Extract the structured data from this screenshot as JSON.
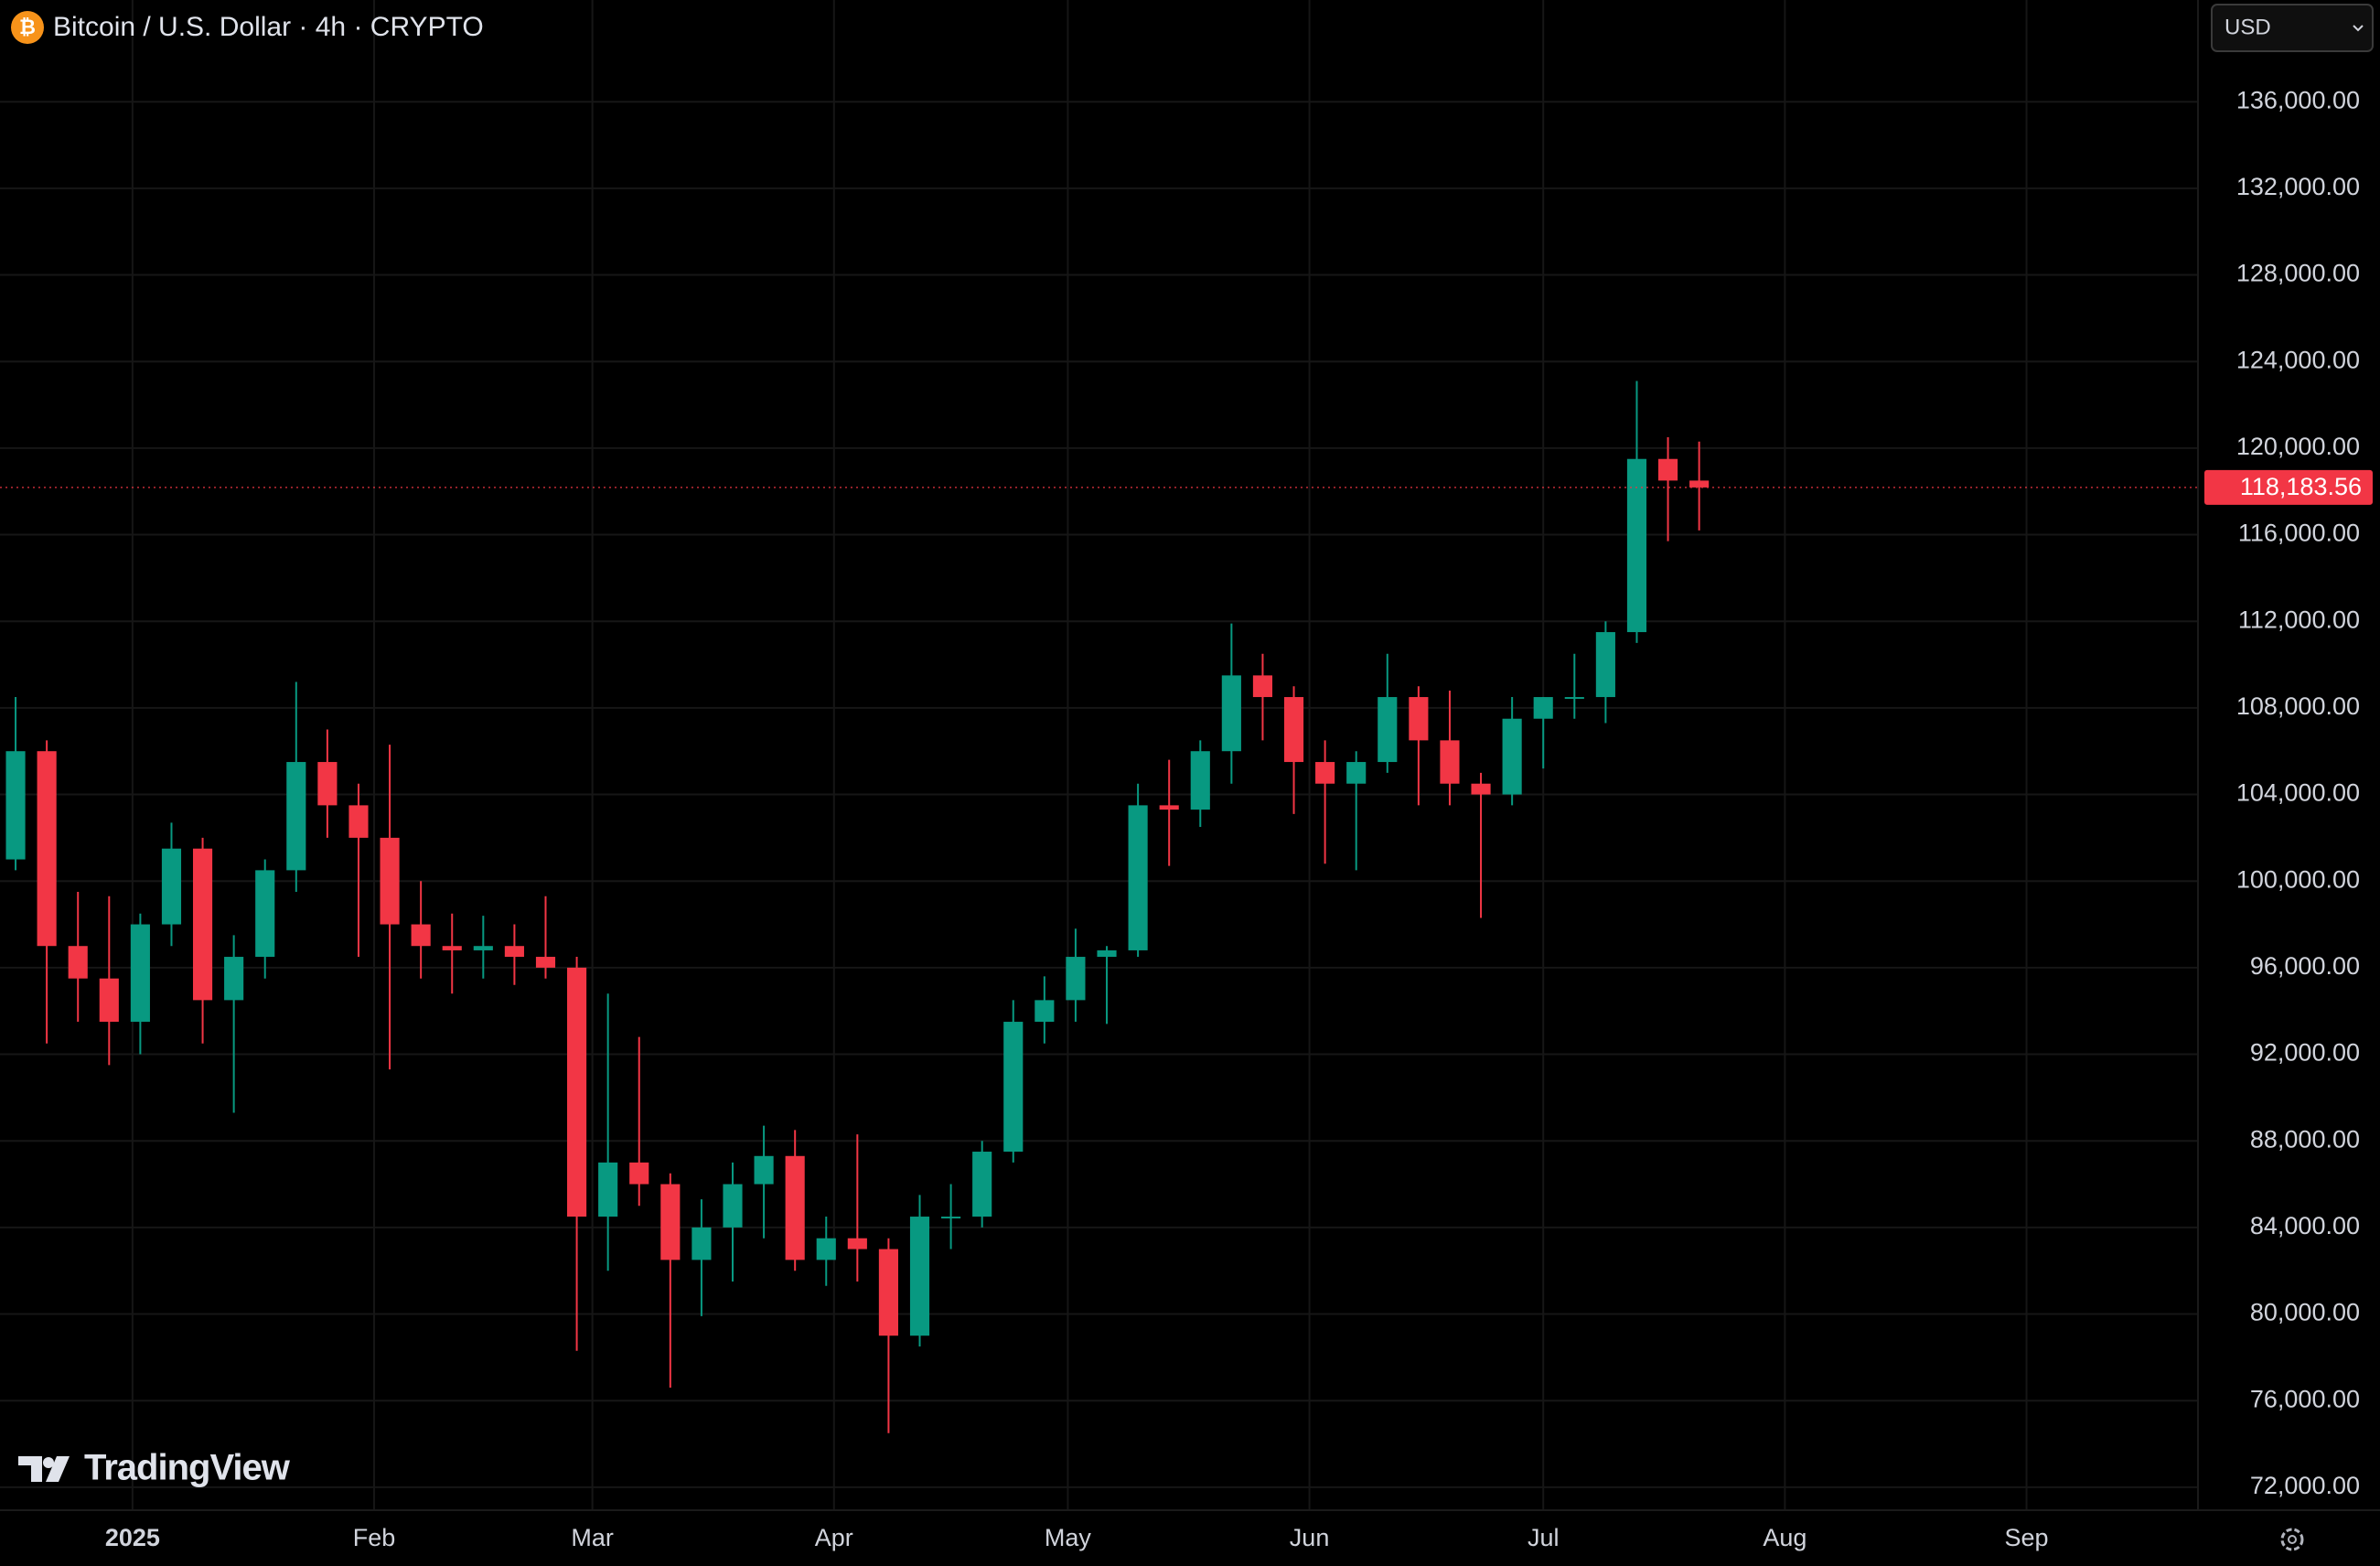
{
  "header": {
    "title": "Bitcoin / U.S. Dollar · 4h · CRYPTO",
    "currency": "USD",
    "brand": "TradingView"
  },
  "chart_data": {
    "type": "candlestick",
    "x": [
      "2024-12-15",
      "2024-12-19",
      "2024-12-23",
      "2024-12-27",
      "2024-12-31",
      "2025-01-04",
      "2025-01-08",
      "2025-01-12",
      "2025-01-16",
      "2025-01-20",
      "2025-01-24",
      "2025-01-28",
      "2025-02-01",
      "2025-02-05",
      "2025-02-09",
      "2025-02-13",
      "2025-02-17",
      "2025-02-21",
      "2025-02-25",
      "2025-03-01",
      "2025-03-05",
      "2025-03-09",
      "2025-03-13",
      "2025-03-17",
      "2025-03-21",
      "2025-03-25",
      "2025-03-29",
      "2025-04-02",
      "2025-04-06",
      "2025-04-10",
      "2025-04-14",
      "2025-04-18",
      "2025-04-22",
      "2025-04-26",
      "2025-04-30",
      "2025-05-04",
      "2025-05-08",
      "2025-05-12",
      "2025-05-16",
      "2025-05-20",
      "2025-05-24",
      "2025-05-28",
      "2025-06-01",
      "2025-06-05",
      "2025-06-09",
      "2025-06-13",
      "2025-06-17",
      "2025-06-21",
      "2025-06-25",
      "2025-06-29",
      "2025-07-03",
      "2025-07-07",
      "2025-07-11",
      "2025-07-15",
      "2025-07-19"
    ],
    "open": [
      101000,
      106000,
      97000,
      95500,
      93500,
      98000,
      101500,
      94500,
      96500,
      100500,
      105500,
      103500,
      102000,
      98000,
      97000,
      96800,
      97000,
      96500,
      96000,
      84500,
      87000,
      86000,
      82500,
      84000,
      86000,
      87300,
      82500,
      83500,
      83000,
      79000,
      84500,
      84500,
      87500,
      93500,
      94500,
      96500,
      96800,
      103500,
      103300,
      106000,
      109500,
      108500,
      105500,
      104500,
      105500,
      108500,
      106500,
      104500,
      104000,
      107500,
      108500,
      108500,
      111500,
      119500,
      118500
    ],
    "high": [
      108500,
      106500,
      99500,
      99300,
      98500,
      102700,
      102000,
      97500,
      101000,
      109200,
      107000,
      104500,
      106300,
      100000,
      98500,
      98400,
      98000,
      99300,
      96500,
      94800,
      92800,
      86500,
      85300,
      87000,
      88700,
      88500,
      84500,
      88300,
      83500,
      85500,
      86000,
      88000,
      94500,
      95600,
      97800,
      97000,
      104500,
      105600,
      106500,
      111900,
      110500,
      109000,
      106500,
      106000,
      110500,
      109000,
      108800,
      105000,
      108500,
      108500,
      110500,
      112000,
      123100,
      120500,
      120300
    ],
    "low": [
      100500,
      92500,
      93500,
      91500,
      92000,
      97000,
      92500,
      89300,
      95500,
      99500,
      102000,
      96500,
      91300,
      95500,
      94800,
      95500,
      95200,
      95500,
      78300,
      82000,
      85000,
      76600,
      79900,
      81500,
      83500,
      82000,
      81300,
      81500,
      74500,
      78500,
      83000,
      84000,
      87000,
      92500,
      93500,
      93400,
      96500,
      100700,
      102500,
      104500,
      106500,
      103100,
      100800,
      100500,
      105000,
      103500,
      103500,
      98300,
      103500,
      105200,
      107500,
      107300,
      111000,
      115700,
      116200
    ],
    "close": [
      106000,
      97000,
      95500,
      93500,
      98000,
      101500,
      94500,
      96500,
      100500,
      105500,
      103500,
      102000,
      98000,
      97000,
      96800,
      97000,
      96500,
      96000,
      84500,
      87000,
      86000,
      82500,
      84000,
      86000,
      87300,
      82500,
      83500,
      83000,
      79000,
      84500,
      84500,
      87500,
      93500,
      94500,
      96500,
      96800,
      103500,
      103300,
      106000,
      109500,
      108500,
      105500,
      104500,
      105500,
      108500,
      106500,
      104500,
      104000,
      107500,
      108500,
      108500,
      111500,
      119500,
      118500,
      118183.56
    ],
    "up_color": "#089981",
    "down_color": "#f23645",
    "ylim": [
      70600,
      140700
    ],
    "yticks": [
      {
        "value": 72000,
        "label": "72,000.00"
      },
      {
        "value": 76000,
        "label": "76,000.00"
      },
      {
        "value": 80000,
        "label": "80,000.00"
      },
      {
        "value": 84000,
        "label": "84,000.00"
      },
      {
        "value": 88000,
        "label": "88,000.00"
      },
      {
        "value": 92000,
        "label": "92,000.00"
      },
      {
        "value": 96000,
        "label": "96,000.00"
      },
      {
        "value": 100000,
        "label": "100,000.00"
      },
      {
        "value": 104000,
        "label": "104,000.00"
      },
      {
        "value": 108000,
        "label": "108,000.00"
      },
      {
        "value": 112000,
        "label": "112,000.00"
      },
      {
        "value": 116000,
        "label": "116,000.00"
      },
      {
        "value": 120000,
        "label": "120,000.00"
      },
      {
        "value": 124000,
        "label": "124,000.00"
      },
      {
        "value": 128000,
        "label": "128,000.00"
      },
      {
        "value": 132000,
        "label": "132,000.00"
      },
      {
        "value": 136000,
        "label": "136,000.00"
      }
    ],
    "xlim": [
      "2024-12-15",
      "2025-09-23"
    ],
    "xticks": [
      {
        "value": "2025-01-01",
        "label": "2025"
      },
      {
        "value": "2025-02-01",
        "label": "Feb"
      },
      {
        "value": "2025-03-01",
        "label": "Mar"
      },
      {
        "value": "2025-04-01",
        "label": "Apr"
      },
      {
        "value": "2025-05-01",
        "label": "May"
      },
      {
        "value": "2025-06-01",
        "label": "Jun"
      },
      {
        "value": "2025-07-01",
        "label": "Jul"
      },
      {
        "value": "2025-08-01",
        "label": "Aug"
      },
      {
        "value": "2025-09-01",
        "label": "Sep"
      }
    ],
    "grid": true,
    "last_price": 118183.56,
    "last_price_label": "118,183.56"
  }
}
